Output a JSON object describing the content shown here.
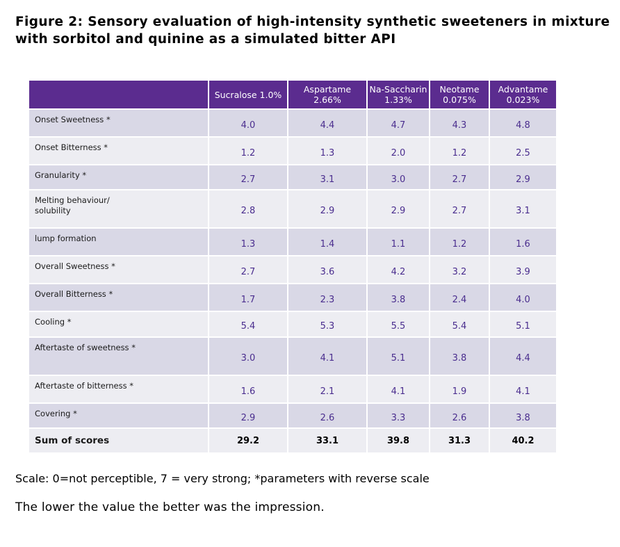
{
  "figure": {
    "title_line1": "Figure 2: Sensory evaluation of high-intensity synthetic sweeteners in mixture",
    "title_line2": "with sorbitol and quinine as a simulated bitter API"
  },
  "table": {
    "header_corner": "",
    "columns": [
      {
        "line1": "Sucralose 1.0%",
        "line2": ""
      },
      {
        "line1": "Aspartame",
        "line2": "2.66%"
      },
      {
        "line1": "Na-Saccharin",
        "line2": "1.33%"
      },
      {
        "line1": "Neotame",
        "line2": "0.075%"
      },
      {
        "line1": "Advantame",
        "line2": "0.023%"
      }
    ],
    "rows": [
      {
        "param": "Onset Sweetness  *",
        "values": [
          "4.0",
          "4.4",
          "4.7",
          "4.3",
          "4.8"
        ]
      },
      {
        "param": "Onset Bitterness  *",
        "values": [
          "1.2",
          "1.3",
          "2.0",
          "1.2",
          "2.5"
        ]
      },
      {
        "param": "Granularity  *",
        "values": [
          "2.7",
          "3.1",
          "3.0",
          "2.7",
          "2.9"
        ]
      },
      {
        "param": "Melting behaviour/\nsolubility",
        "values": [
          "2.8",
          "2.9",
          "2.9",
          "2.7",
          "3.1"
        ]
      },
      {
        "param": "lump formation",
        "values": [
          "1.3",
          "1.4",
          "1.1",
          "1.2",
          "1.6"
        ]
      },
      {
        "param": "Overall Sweetness  *",
        "values": [
          "2.7",
          "3.6",
          "4.2",
          "3.2",
          "3.9"
        ]
      },
      {
        "param": "Overall Bitterness   *",
        "values": [
          "1.7",
          "2.3",
          "3.8",
          "2.4",
          "4.0"
        ]
      },
      {
        "param": "Cooling  *",
        "values": [
          "5.4",
          "5.3",
          "5.5",
          "5.4",
          "5.1"
        ]
      },
      {
        "param": "Aftertaste of sweetness  *",
        "values": [
          "3.0",
          "4.1",
          "5.1",
          "3.8",
          "4.4"
        ]
      },
      {
        "param": "Aftertaste of bitterness  *",
        "values": [
          "1.6",
          "2.1",
          "4.1",
          "1.9",
          "4.1"
        ]
      },
      {
        "param": "Covering  *",
        "values": [
          "2.9",
          "2.6",
          "3.3",
          "2.6",
          "3.8"
        ]
      }
    ],
    "sum": {
      "label": "Sum of scores",
      "values": [
        "29.2",
        "33.1",
        "39.8",
        "31.3",
        "40.2"
      ]
    }
  },
  "notes": {
    "scale": "Scale: 0=not perceptible, 7 = very strong; *parameters with reverse scale",
    "impression": "The lower the value the better was the impression."
  },
  "colors": {
    "header_bg": "#5b2c8f",
    "row_dark": "#d9d8e6",
    "row_light": "#ededf2",
    "value_text": "#4a2d8e"
  }
}
